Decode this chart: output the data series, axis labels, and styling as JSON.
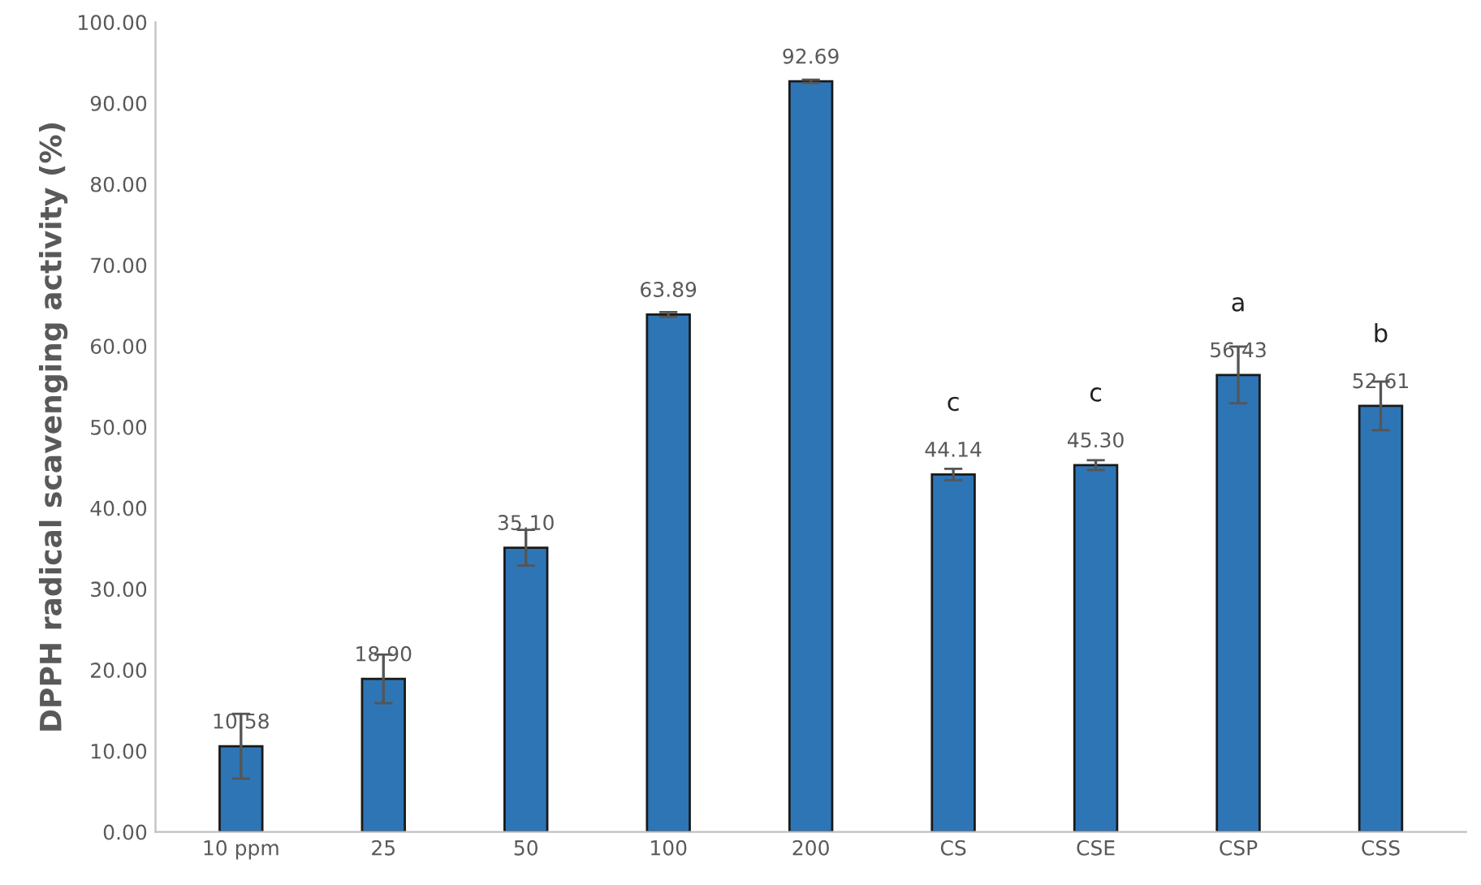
{
  "chart_data": {
    "type": "bar",
    "ylabel": "DPPH radical scavenging activity (%)",
    "categories": [
      "10 ppm",
      "25",
      "50",
      "100",
      "200",
      "CS",
      "CSE",
      "CSP",
      "CSS"
    ],
    "values": [
      10.58,
      18.9,
      35.1,
      63.89,
      92.69,
      44.14,
      45.3,
      56.43,
      52.61
    ],
    "value_labels": [
      "10.58",
      "18.90",
      "35.10",
      "63.89",
      "92.69",
      "44.14",
      "45.30",
      "56.43",
      "52.61"
    ],
    "errors": [
      4.0,
      3.0,
      2.2,
      0.3,
      0.2,
      0.7,
      0.6,
      3.5,
      3.0
    ],
    "color": "#2e75b6",
    "ylim": [
      0,
      100
    ],
    "yticks": [
      {
        "value": 0,
        "label": "0.00"
      },
      {
        "value": 10,
        "label": "10.00"
      },
      {
        "value": 20,
        "label": "20.00"
      },
      {
        "value": 30,
        "label": "30.00"
      },
      {
        "value": 40,
        "label": "40.00"
      },
      {
        "value": 50,
        "label": "50.00"
      },
      {
        "value": 60,
        "label": "60.00"
      },
      {
        "value": 70,
        "label": "70.00"
      },
      {
        "value": 80,
        "label": "80.00"
      },
      {
        "value": 90,
        "label": "90.00"
      },
      {
        "value": 100,
        "label": "100.00"
      }
    ],
    "annotations": [
      {
        "text": "c",
        "x": "CS",
        "y": 44.14
      },
      {
        "text": "c",
        "x": "CSE",
        "y": 45.3
      },
      {
        "text": "a",
        "x": "CSP",
        "y": 56.43
      },
      {
        "text": "b",
        "x": "CSS",
        "y": 52.61
      }
    ],
    "grid": false,
    "legend": false
  }
}
